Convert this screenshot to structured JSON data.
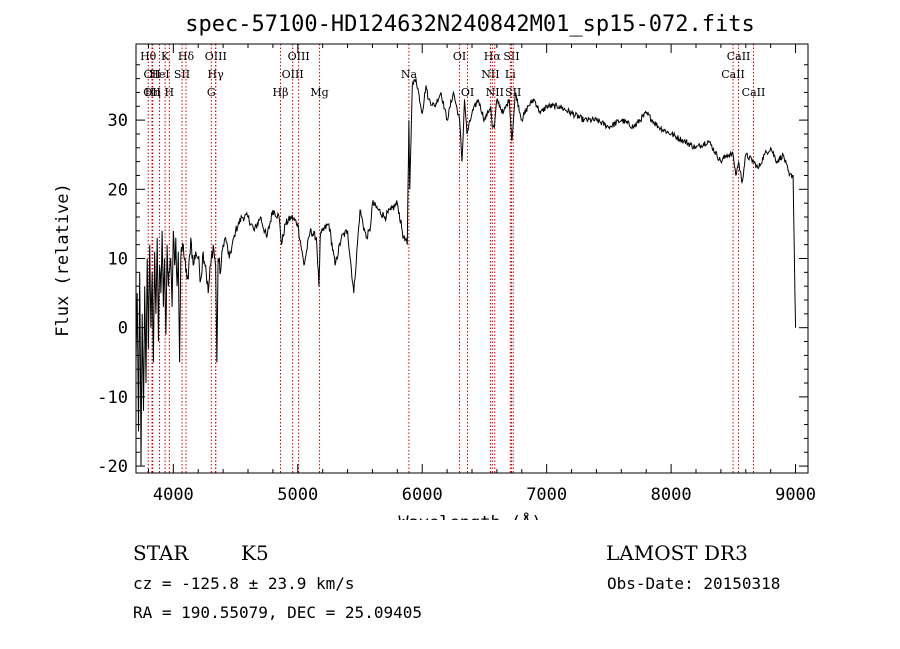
{
  "chart_data": {
    "type": "line",
    "title": "spec-57100-HD124632N240842M01_sp15-072.fits",
    "xlabel": "Wavelength (Å)",
    "ylabel": "Flux (relative)",
    "xlim": [
      3700,
      9100
    ],
    "ylim": [
      -21,
      41
    ],
    "xticks": [
      4000,
      5000,
      6000,
      7000,
      8000,
      9000
    ],
    "yticks": [
      -20,
      -10,
      0,
      10,
      20,
      30
    ],
    "line_color": "#000000",
    "marker_color": "#cc0000",
    "series": [
      {
        "name": "spectrum",
        "x": [
          3700,
          3710,
          3720,
          3730,
          3740,
          3750,
          3760,
          3770,
          3780,
          3790,
          3800,
          3810,
          3820,
          3830,
          3840,
          3850,
          3860,
          3870,
          3880,
          3890,
          3900,
          3910,
          3920,
          3930,
          3940,
          3950,
          3960,
          3970,
          3980,
          3990,
          4000,
          4010,
          4020,
          4030,
          4040,
          4050,
          4060,
          4080,
          4100,
          4120,
          4140,
          4160,
          4180,
          4200,
          4220,
          4240,
          4260,
          4280,
          4300,
          4320,
          4340,
          4350,
          4360,
          4380,
          4400,
          4420,
          4450,
          4500,
          4550,
          4600,
          4650,
          4700,
          4750,
          4800,
          4850,
          4870,
          4900,
          4950,
          5000,
          5050,
          5100,
          5150,
          5170,
          5180,
          5200,
          5250,
          5300,
          5350,
          5400,
          5450,
          5500,
          5550,
          5580,
          5600,
          5650,
          5700,
          5750,
          5800,
          5850,
          5880,
          5893,
          5900,
          5920,
          5950,
          6000,
          6030,
          6050,
          6100,
          6150,
          6200,
          6250,
          6300,
          6320,
          6340,
          6360,
          6400,
          6450,
          6500,
          6550,
          6563,
          6580,
          6600,
          6650,
          6700,
          6720,
          6750,
          6800,
          6850,
          6900,
          6950,
          7000,
          7100,
          7200,
          7300,
          7400,
          7500,
          7600,
          7700,
          7800,
          7900,
          8000,
          8100,
          8200,
          8300,
          8400,
          8450,
          8498,
          8520,
          8542,
          8570,
          8600,
          8662,
          8700,
          8750,
          8800,
          8850,
          8900,
          8950,
          8980,
          9000
        ],
        "y": [
          -5,
          5,
          -15,
          8,
          -20,
          2,
          -12,
          6,
          -8,
          10,
          -3,
          12,
          0,
          8,
          -5,
          11,
          2,
          13,
          -2,
          9,
          5,
          14,
          3,
          10,
          -1,
          12,
          6,
          8,
          10,
          3,
          14,
          9,
          13,
          6,
          11,
          -5,
          10,
          12,
          8,
          7,
          13,
          9,
          11,
          10,
          7,
          11,
          9,
          5,
          9,
          12,
          9,
          -5,
          10,
          8,
          12,
          13,
          10,
          14,
          16,
          16,
          14,
          16,
          13,
          17,
          16,
          12,
          15,
          16,
          15,
          9,
          14,
          13,
          6,
          13,
          14,
          15,
          9,
          13,
          14,
          5,
          17,
          13,
          14,
          18,
          17,
          16,
          17,
          18,
          13,
          12,
          30,
          20,
          35,
          36,
          31,
          35,
          33,
          32,
          34,
          30,
          34,
          30,
          24,
          33,
          28,
          31,
          33,
          30,
          32,
          29,
          29,
          33,
          31,
          33,
          27,
          34,
          30,
          32,
          33,
          31,
          32,
          32,
          31,
          30,
          30,
          29,
          30,
          29,
          31,
          29,
          28,
          27,
          26,
          27,
          24,
          25,
          25,
          22,
          24,
          21,
          25,
          24,
          23,
          25,
          26,
          24,
          25,
          22,
          22,
          0
        ]
      }
    ],
    "line_markers": [
      {
        "label": "Hθ",
        "x": 3798,
        "row": 0
      },
      {
        "label": "CII",
        "x": 3829,
        "row": 1
      },
      {
        "label": "OII",
        "x": 3829,
        "row": 2
      },
      {
        "label": "Hη",
        "x": 3835,
        "row": 2
      },
      {
        "label": "HeI",
        "x": 3889,
        "row": 1
      },
      {
        "label": "K",
        "x": 3934,
        "row": 0
      },
      {
        "label": "H",
        "x": 3968,
        "row": 2
      },
      {
        "label": "Hδ",
        "x": 4102,
        "row": 0
      },
      {
        "label": "SII",
        "x": 4070,
        "row": 1
      },
      {
        "label": "OIII",
        "x": 4341,
        "row": 0
      },
      {
        "label": "Hγ",
        "x": 4340,
        "row": 1
      },
      {
        "label": "G",
        "x": 4305,
        "row": 2
      },
      {
        "label": "Hβ",
        "x": 4861,
        "row": 2
      },
      {
        "label": "OIII",
        "x": 5007,
        "row": 0
      },
      {
        "label": "OIII",
        "x": 4959,
        "row": 1
      },
      {
        "label": "Mg",
        "x": 5175,
        "row": 2
      },
      {
        "label": "Na",
        "x": 5893,
        "row": 1
      },
      {
        "label": "OI",
        "x": 6300,
        "row": 0
      },
      {
        "label": "OI",
        "x": 6364,
        "row": 2
      },
      {
        "label": "Hα",
        "x": 6563,
        "row": 0
      },
      {
        "label": "NII",
        "x": 6548,
        "row": 1
      },
      {
        "label": "NII",
        "x": 6583,
        "row": 2
      },
      {
        "label": "SII",
        "x": 6717,
        "row": 0
      },
      {
        "label": "Li",
        "x": 6708,
        "row": 1
      },
      {
        "label": "SII",
        "x": 6731,
        "row": 2
      },
      {
        "label": "CaII",
        "x": 8542,
        "row": 0
      },
      {
        "label": "CaII",
        "x": 8498,
        "row": 1
      },
      {
        "label": "CaII",
        "x": 8662,
        "row": 2
      }
    ]
  },
  "info": {
    "class": "STAR",
    "subclass": "K5",
    "survey": "LAMOST DR3",
    "cz": "cz = -125.8 ± 23.9 km/s",
    "obs_date": "Obs-Date: 20150318",
    "coords": "RA = 190.55079, DEC =  25.09405"
  }
}
